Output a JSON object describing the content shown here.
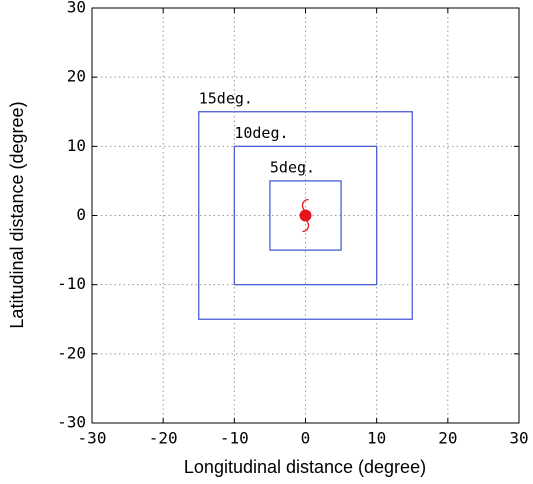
{
  "chart_data": {
    "type": "square",
    "x_label": "Longitudinal distance (degree)",
    "y_label": "Latitudinal distance (degree)",
    "xlim": [
      -30,
      30
    ],
    "ylim": [
      -30,
      30
    ],
    "xticks": [
      -30,
      -20,
      -10,
      0,
      10,
      20,
      30
    ],
    "yticks": [
      -30,
      -20,
      -10,
      0,
      10,
      20,
      30
    ],
    "grid": true,
    "series": [
      {
        "name": "5deg.",
        "color": "#4a5fd8",
        "values": [
          5
        ]
      },
      {
        "name": "10deg.",
        "color": "#4a5fd8",
        "values": [
          10
        ]
      },
      {
        "name": "15deg.",
        "color": "#4a5fd8",
        "values": [
          15
        ]
      }
    ],
    "center": {
      "x": 0,
      "y": 0,
      "color": "#e8141c"
    }
  }
}
